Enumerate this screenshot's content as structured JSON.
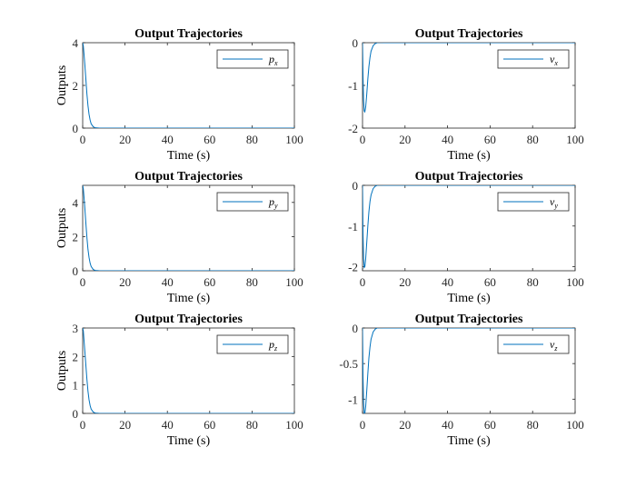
{
  "chart_data": [
    {
      "type": "line",
      "title": "Output Trajectories",
      "xlabel": "Time (s)",
      "ylabel": "Outputs",
      "xlim": [
        0,
        100
      ],
      "ylim": [
        0,
        4
      ],
      "xticks": [
        "0",
        "20",
        "40",
        "60",
        "80",
        "100"
      ],
      "yticks": [
        "0",
        "2",
        "4"
      ],
      "legend": {
        "placement": "top-right",
        "symbol": "p",
        "sub": "x"
      },
      "line_color": "#0072BD",
      "series": [
        {
          "name": "p_x",
          "x": [
            0,
            0.3,
            0.6,
            1,
            1.5,
            2,
            2.5,
            3,
            3.5,
            4,
            5,
            6,
            8,
            10,
            100
          ],
          "y": [
            4.0,
            3.85,
            3.5,
            3.0,
            2.3,
            1.6,
            1.05,
            0.65,
            0.38,
            0.2,
            0.06,
            0.015,
            0.002,
            0,
            0
          ]
        }
      ]
    },
    {
      "type": "line",
      "title": "Output Trajectories",
      "xlabel": "Time (s)",
      "ylabel": "",
      "xlim": [
        0,
        100
      ],
      "ylim": [
        -2,
        0
      ],
      "xticks": [
        "0",
        "20",
        "40",
        "60",
        "80",
        "100"
      ],
      "yticks": [
        "-2",
        "-1",
        "0"
      ],
      "legend": {
        "placement": "top-right",
        "symbol": "v",
        "sub": "x"
      },
      "line_color": "#0072BD",
      "series": [
        {
          "name": "v_x",
          "x": [
            0,
            0.25,
            0.5,
            0.8,
            1.1,
            1.5,
            2,
            2.5,
            3,
            3.5,
            4,
            5,
            6,
            7,
            8,
            10,
            100
          ],
          "y": [
            0,
            -0.8,
            -1.35,
            -1.6,
            -1.62,
            -1.5,
            -1.2,
            -0.85,
            -0.56,
            -0.35,
            -0.2,
            -0.07,
            -0.02,
            0.003,
            0.005,
            0,
            0
          ]
        }
      ]
    },
    {
      "type": "line",
      "title": "Output Trajectories",
      "xlabel": "Time (s)",
      "ylabel": "Outputs",
      "xlim": [
        0,
        100
      ],
      "ylim": [
        0,
        5
      ],
      "xticks": [
        "0",
        "20",
        "40",
        "60",
        "80",
        "100"
      ],
      "yticks": [
        "0",
        "2",
        "4"
      ],
      "legend": {
        "placement": "top-right",
        "symbol": "p",
        "sub": "y"
      },
      "line_color": "#0072BD",
      "series": [
        {
          "name": "p_y",
          "x": [
            0,
            0.3,
            0.6,
            1,
            1.5,
            2,
            2.5,
            3,
            3.5,
            4,
            5,
            6,
            8,
            10,
            100
          ],
          "y": [
            5.0,
            4.8,
            4.35,
            3.7,
            2.8,
            1.95,
            1.25,
            0.78,
            0.45,
            0.25,
            0.07,
            0.02,
            0.002,
            0,
            0
          ]
        }
      ]
    },
    {
      "type": "line",
      "title": "Output Trajectories",
      "xlabel": "Time (s)",
      "ylabel": "",
      "xlim": [
        0,
        100
      ],
      "ylim": [
        -2.1,
        0
      ],
      "xticks": [
        "0",
        "20",
        "40",
        "60",
        "80",
        "100"
      ],
      "yticks": [
        "-2",
        "-1",
        "0"
      ],
      "legend": {
        "placement": "top-right",
        "symbol": "v",
        "sub": "y"
      },
      "line_color": "#0072BD",
      "series": [
        {
          "name": "v_y",
          "x": [
            0,
            0.25,
            0.5,
            0.8,
            1.1,
            1.5,
            2,
            2.5,
            3,
            3.5,
            4,
            5,
            6,
            7,
            8,
            10,
            100
          ],
          "y": [
            0,
            -1.2,
            -1.8,
            -2.02,
            -2.0,
            -1.8,
            -1.4,
            -1.0,
            -0.65,
            -0.4,
            -0.24,
            -0.08,
            -0.02,
            0.003,
            0.005,
            0,
            0
          ]
        }
      ]
    },
    {
      "type": "line",
      "title": "Output Trajectories",
      "xlabel": "Time (s)",
      "ylabel": "Outputs",
      "xlim": [
        0,
        100
      ],
      "ylim": [
        0,
        3
      ],
      "xticks": [
        "0",
        "20",
        "40",
        "60",
        "80",
        "100"
      ],
      "yticks": [
        "0",
        "1",
        "2",
        "3"
      ],
      "legend": {
        "placement": "top-right",
        "symbol": "p",
        "sub": "z"
      },
      "line_color": "#0072BD",
      "series": [
        {
          "name": "p_z",
          "x": [
            0,
            0.3,
            0.6,
            1,
            1.5,
            2,
            2.5,
            3,
            3.5,
            4,
            5,
            6,
            8,
            10,
            100
          ],
          "y": [
            3.0,
            2.9,
            2.6,
            2.2,
            1.7,
            1.2,
            0.78,
            0.48,
            0.28,
            0.15,
            0.045,
            0.012,
            0.001,
            0,
            0
          ]
        }
      ]
    },
    {
      "type": "line",
      "title": "Output Trajectories",
      "xlabel": "Time (s)",
      "ylabel": "",
      "xlim": [
        0,
        100
      ],
      "ylim": [
        -1.2,
        0
      ],
      "xticks": [
        "0",
        "20",
        "40",
        "60",
        "80",
        "100"
      ],
      "yticks": [
        "-1",
        "-0.5",
        "0"
      ],
      "legend": {
        "placement": "top-right",
        "symbol": "v",
        "sub": "z"
      },
      "line_color": "#0072BD",
      "series": [
        {
          "name": "v_z",
          "x": [
            0,
            0.25,
            0.5,
            0.8,
            1.1,
            1.5,
            2,
            2.5,
            3,
            3.5,
            4,
            5,
            6,
            7,
            8,
            10,
            100
          ],
          "y": [
            0,
            -0.7,
            -1.05,
            -1.2,
            -1.2,
            -1.1,
            -0.88,
            -0.64,
            -0.42,
            -0.27,
            -0.16,
            -0.055,
            -0.015,
            0.002,
            0.003,
            0,
            0
          ]
        }
      ]
    }
  ]
}
